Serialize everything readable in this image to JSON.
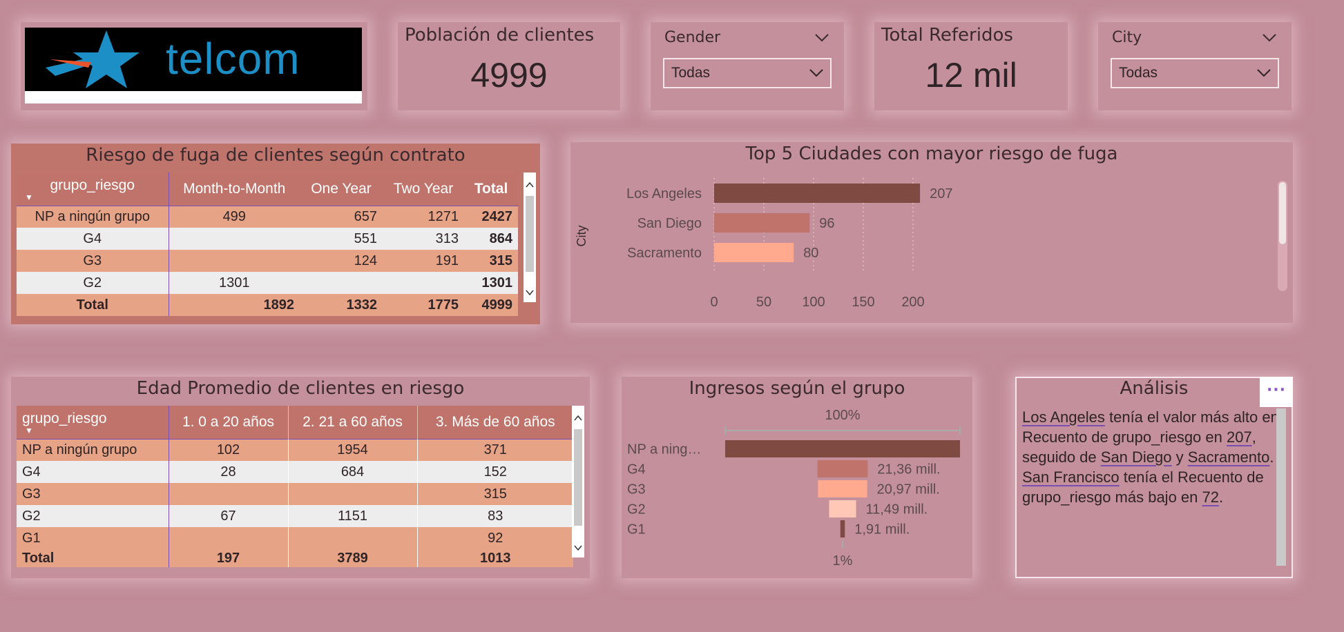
{
  "logo": {
    "text": "telcom",
    "icon": "star-logo-icon"
  },
  "kpi_population": {
    "title": "Población de clientes",
    "value": "4999"
  },
  "slicer_gender": {
    "title": "Gender",
    "value": "Todas"
  },
  "kpi_referrals": {
    "title": "Total Referidos",
    "value": "12 mil"
  },
  "slicer_city": {
    "title": "City",
    "value": "Todas"
  },
  "contract_matrix": {
    "title": "Riesgo de fuga de clientes según contrato",
    "columns": [
      "grupo_riesgo",
      "Month-to-Month",
      "One Year",
      "Two Year",
      "Total"
    ],
    "rows": [
      [
        "NP a ningún grupo",
        "499",
        "657",
        "1271",
        "2427"
      ],
      [
        "G4",
        "",
        "551",
        "313",
        "864"
      ],
      [
        "G3",
        "",
        "124",
        "191",
        "315"
      ],
      [
        "G2",
        "1301",
        "",
        "",
        "1301"
      ]
    ],
    "total": [
      "Total",
      "1892",
      "1332",
      "1775",
      "4999"
    ]
  },
  "age_matrix": {
    "title": "Edad Promedio de clientes en riesgo",
    "columns": [
      "grupo_riesgo",
      "1. 0 a 20 años",
      "2. 21 a 60 años",
      "3. Más de 60 años"
    ],
    "rows": [
      [
        "NP a ningún grupo",
        "102",
        "1954",
        "371"
      ],
      [
        "G4",
        "28",
        "684",
        "152"
      ],
      [
        "G3",
        "",
        "",
        "315"
      ],
      [
        "G2",
        "67",
        "1151",
        "83"
      ],
      [
        "G1",
        "",
        "",
        "92"
      ]
    ],
    "total": [
      "Total",
      "197",
      "3789",
      "1013"
    ]
  },
  "chart_data": [
    {
      "type": "bar",
      "orientation": "horizontal",
      "title": "Top 5 Ciudades con mayor riesgo de fuga",
      "ylabel": "City",
      "xlabel": "",
      "categories": [
        "Los Angeles",
        "San Diego",
        "Sacramento"
      ],
      "values": [
        207,
        96,
        80
      ],
      "xlim": [
        0,
        207
      ],
      "xticks": [
        0,
        50,
        100,
        150,
        200
      ],
      "colors": [
        "#7e4a42",
        "#c0736a",
        "#ffa98e"
      ],
      "grid": true
    },
    {
      "type": "bar",
      "subtype": "funnel",
      "title": "Ingresos según el grupo",
      "categories": [
        "NP a ning…",
        "G4",
        "G3",
        "G2",
        "G1"
      ],
      "values": [
        100,
        21.36,
        20.97,
        11.49,
        1.91
      ],
      "value_labels": [
        "",
        "21,36 mill.",
        "20,97 mill.",
        "11,49 mill.",
        "1,91 mill."
      ],
      "top_label": "100%",
      "bottom_label": "1%",
      "colors": [
        "#7e4a42",
        "#c0736a",
        "#ffa98e",
        "#ffc7b5",
        "#7e4a42"
      ]
    }
  ],
  "analysis": {
    "title": "Análisis",
    "more_icon": "more-options-icon",
    "parts": [
      {
        "t": "Los Angeles",
        "u": true
      },
      {
        "t": " tenía el valor más alto en Recuento de grupo_riesgo en ",
        "u": false
      },
      {
        "t": "207",
        "u": true
      },
      {
        "t": ", seguido de ",
        "u": false
      },
      {
        "t": "San Diego",
        "u": true
      },
      {
        "t": " y ",
        "u": false
      },
      {
        "t": "Sacramento",
        "u": true
      },
      {
        "t": ". ",
        "u": false
      },
      {
        "t": "San Francisco",
        "u": true
      },
      {
        "t": " tenía el Recuento de grupo_riesgo más bajo en ",
        "u": false
      },
      {
        "t": "72",
        "u": true
      },
      {
        "t": ".",
        "u": false
      }
    ]
  }
}
